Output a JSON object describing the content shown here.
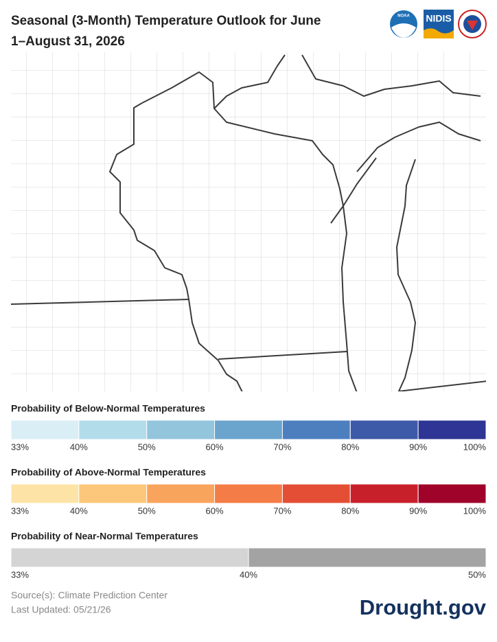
{
  "header": {
    "title_lines": [
      "Seasonal (3-Month) Temperature Outlook for June",
      "1–August 31, 2026"
    ]
  },
  "logos": [
    "NOAA",
    "NIDIS"
  ],
  "legends": [
    {
      "title": "Probability of Below-Normal Temperatures",
      "colors": [
        "#daeef6",
        "#b3dceb",
        "#93c5dd",
        "#6ba4cd",
        "#4d7fbf",
        "#3d5aa8",
        "#2e3594"
      ],
      "labels": [
        "33%",
        "40%",
        "50%",
        "60%",
        "70%",
        "80%",
        "90%",
        "100%"
      ]
    },
    {
      "title": "Probability of Above-Normal Temperatures",
      "colors": [
        "#fde4a6",
        "#fcc77a",
        "#f9a45c",
        "#f47c47",
        "#e44e34",
        "#c8202a",
        "#a0032a"
      ],
      "labels": [
        "33%",
        "40%",
        "50%",
        "60%",
        "70%",
        "80%",
        "90%",
        "100%"
      ]
    },
    {
      "title": "Probability of Near-Normal Temperatures",
      "colors": [
        "#d4d4d4",
        "#a3a3a3"
      ],
      "labels": [
        "33%",
        "40%",
        "50%"
      ]
    }
  ],
  "footer": {
    "source": "Source(s): Climate Prediction Center",
    "updated": "Last Updated: 05/21/26",
    "brand": "Drought.gov"
  }
}
